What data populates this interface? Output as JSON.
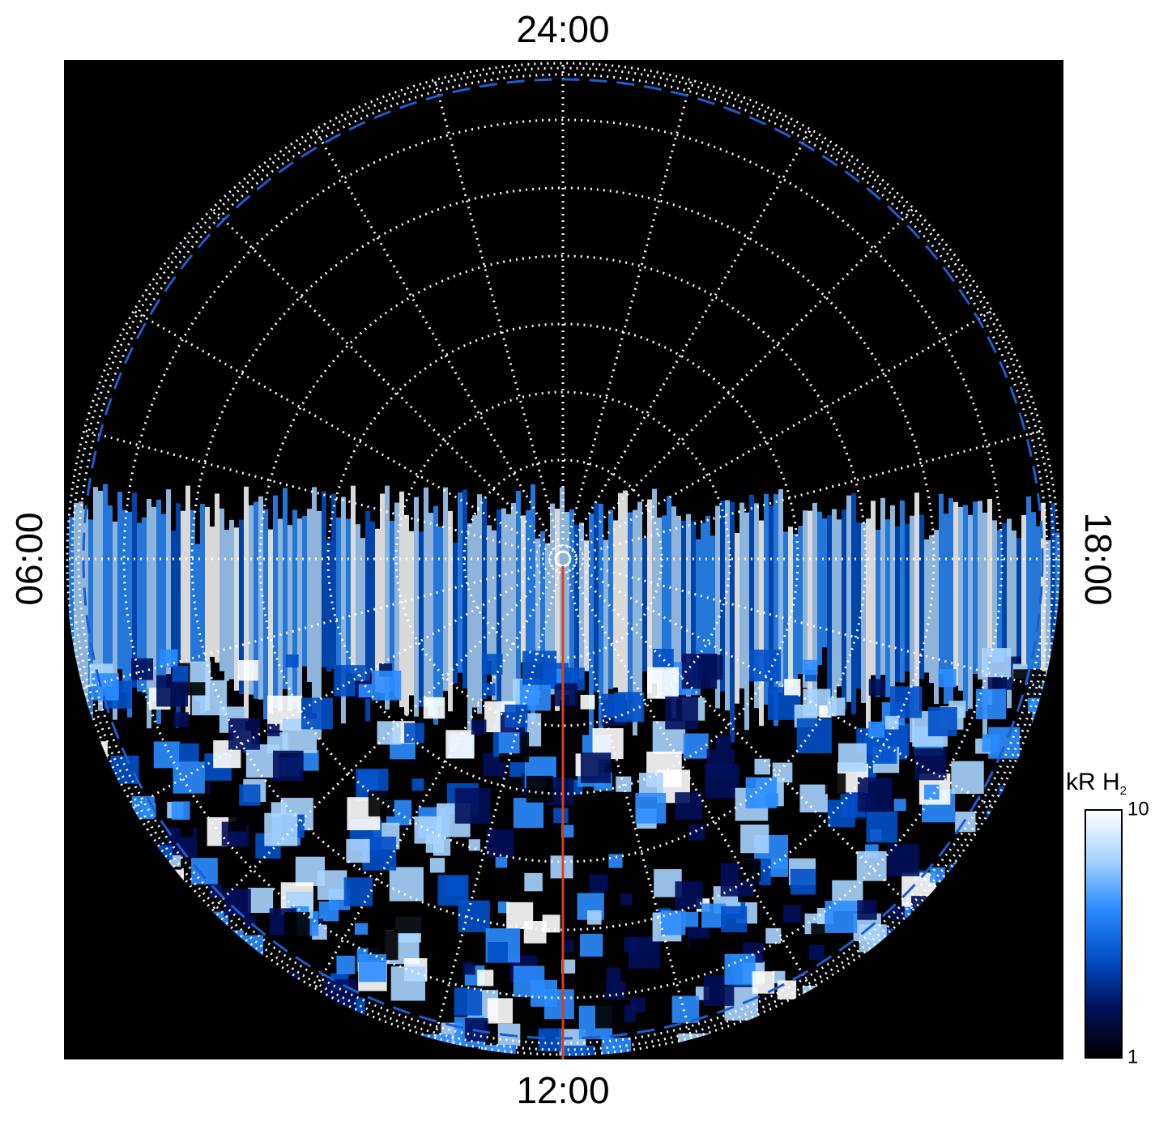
{
  "chart_data": {
    "type": "polar-image",
    "local_time_labels": {
      "top": "24:00",
      "left": "06:00",
      "bottom": "12:00",
      "right": "18:00"
    },
    "colorbar": {
      "label": "kR H",
      "label_subscript": "2",
      "lim": [
        1,
        10
      ],
      "ticks": [
        1,
        10
      ],
      "log_scale": true,
      "colors": [
        "#000000",
        "#00105a",
        "#0050c8",
        "#2a8cff",
        "#a8d4ff",
        "#ffffff"
      ]
    },
    "meridian_line_color": "#d8401c",
    "reference_ring_color": "#1a5fd0",
    "grid": true
  }
}
